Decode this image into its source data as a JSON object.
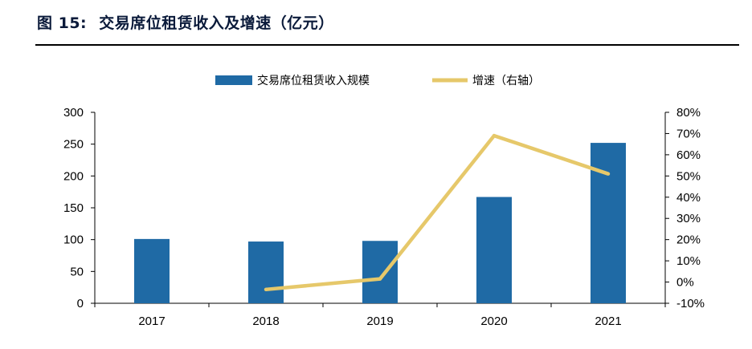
{
  "figure": {
    "number": "图 15:",
    "title": "交易席位租赁收入及增速（亿元）"
  },
  "chart_data": {
    "type": "bar",
    "categories": [
      "2017",
      "2018",
      "2019",
      "2020",
      "2021"
    ],
    "series": [
      {
        "name": "交易席位租赁收入规模",
        "kind": "bar",
        "axis": "left",
        "color": "#1f6aa5",
        "values": [
          101,
          97,
          98,
          167,
          252
        ]
      },
      {
        "name": "增速（右轴）",
        "kind": "line",
        "axis": "right",
        "color": "#e6c86a",
        "values": [
          null,
          -3.5,
          1.5,
          69,
          51
        ]
      }
    ],
    "y_left": {
      "min": 0,
      "max": 300,
      "step": 50,
      "ticks": [
        "0",
        "50",
        "100",
        "150",
        "200",
        "250",
        "300"
      ]
    },
    "y_right": {
      "min": -10,
      "max": 80,
      "step": 10,
      "ticks": [
        "-10%",
        "0%",
        "10%",
        "20%",
        "30%",
        "40%",
        "50%",
        "60%",
        "70%",
        "80%"
      ]
    },
    "legend_position": "top-center",
    "grid": false
  }
}
